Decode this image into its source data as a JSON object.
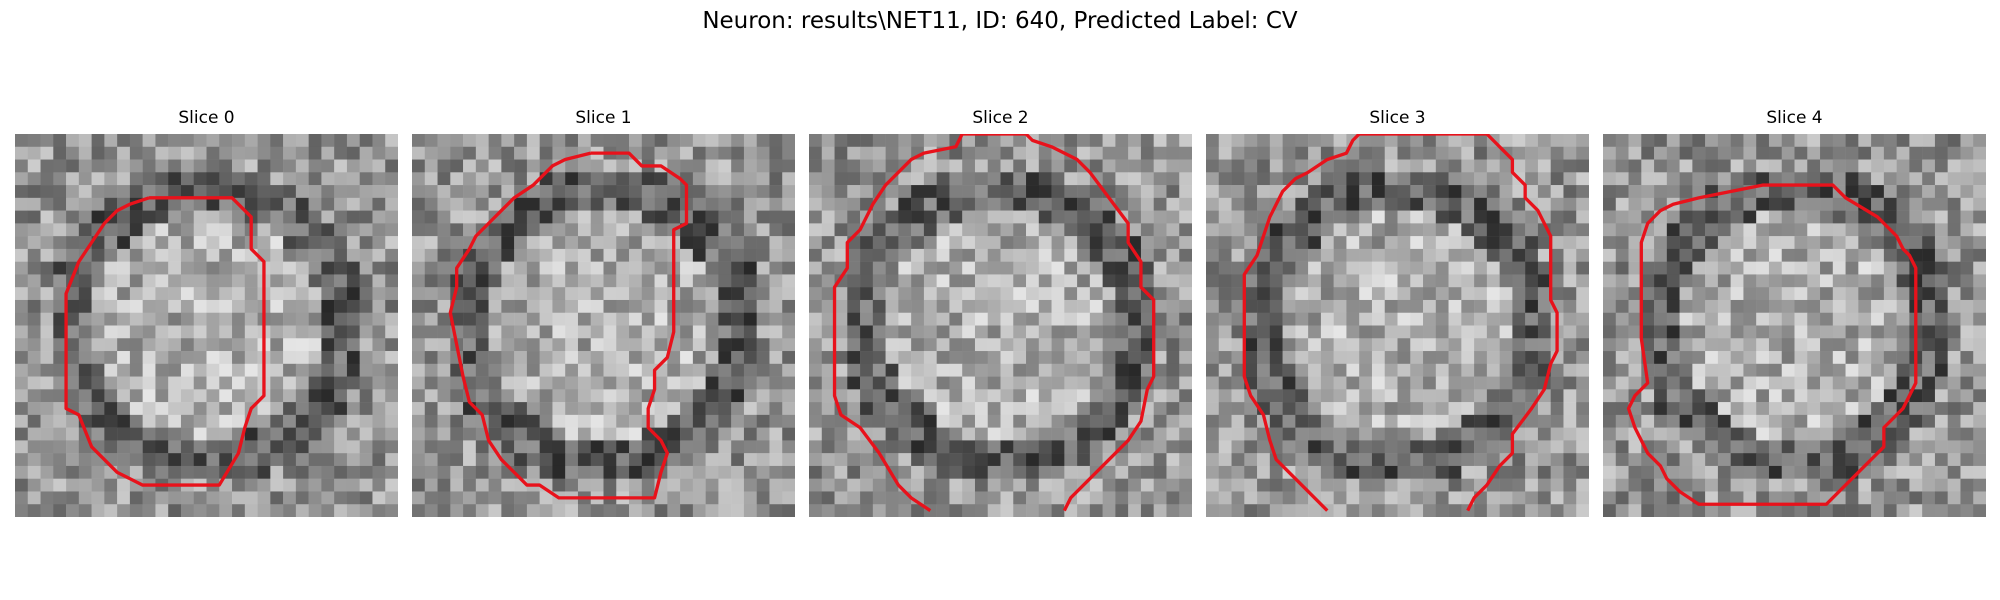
{
  "figure": {
    "title": "Neuron: results\\NET11, ID: 640, Predicted Label: CV",
    "contour_color": "#e8121b",
    "panels": [
      {
        "title": "Slice 0",
        "seed": 11
      },
      {
        "title": "Slice 1",
        "seed": 23
      },
      {
        "title": "Slice 2",
        "seed": 37
      },
      {
        "title": "Slice 3",
        "seed": 51
      },
      {
        "title": "Slice 4",
        "seed": 67
      }
    ]
  }
}
